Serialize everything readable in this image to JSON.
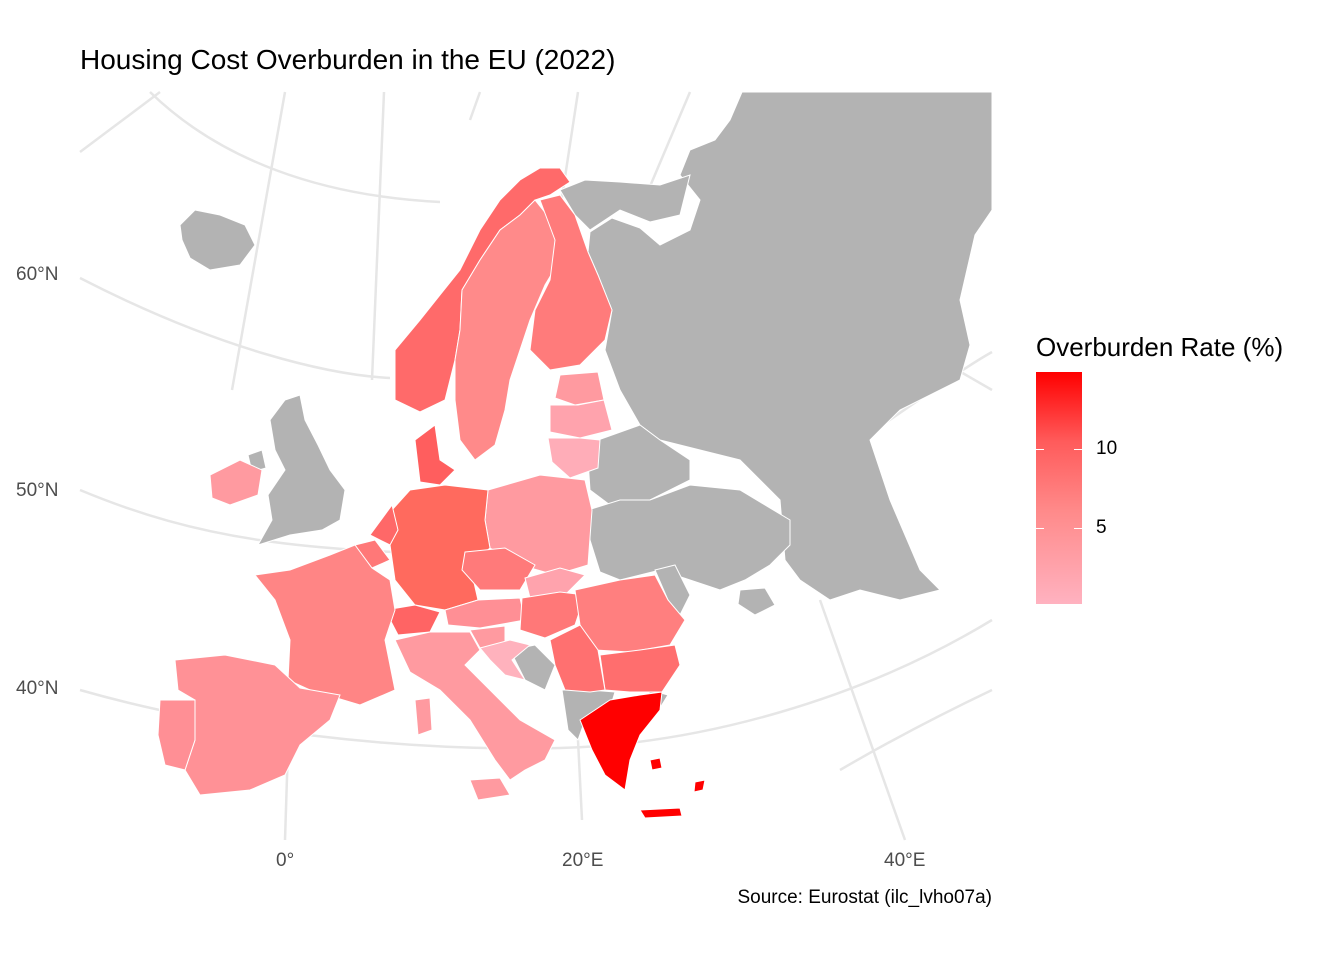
{
  "title": "Housing Cost Overburden in the EU (2022)",
  "caption": "Source: Eurostat (ilc_lvho07a)",
  "axes": {
    "lat_labels": [
      "60°N",
      "50°N",
      "40°N"
    ],
    "lon_labels": [
      "0°",
      "20°E",
      "40°E"
    ]
  },
  "legend": {
    "title": "Overburden Rate (%)",
    "ticks": [
      "10",
      "5"
    ],
    "colors": {
      "high": "#ff0000",
      "low": "#ffb2c0",
      "no_data": "#b3b3b3"
    }
  },
  "chart_data": {
    "type": "choropleth",
    "title": "Housing Cost Overburden in the EU (2022)",
    "value_label": "Overburden Rate (%)",
    "range_approx": [
      1,
      15
    ],
    "regions_approx": [
      {
        "name": "Greece",
        "value": 15
      },
      {
        "name": "Denmark",
        "value": 9
      },
      {
        "name": "Norway",
        "value": 8
      },
      {
        "name": "Germany",
        "value": 8
      },
      {
        "name": "Netherlands",
        "value": 7
      },
      {
        "name": "Switzerland",
        "value": 8
      },
      {
        "name": "Bulgaria",
        "value": 6
      },
      {
        "name": "Finland",
        "value": 5
      },
      {
        "name": "Romania",
        "value": 5
      },
      {
        "name": "Hungary",
        "value": 5
      },
      {
        "name": "Serbia",
        "value": 5
      },
      {
        "name": "Czechia",
        "value": 5
      },
      {
        "name": "France",
        "value": 5
      },
      {
        "name": "Spain",
        "value": 4
      },
      {
        "name": "Portugal",
        "value": 4
      },
      {
        "name": "Belgium",
        "value": 5
      },
      {
        "name": "Sweden",
        "value": 4
      },
      {
        "name": "Poland",
        "value": 4
      },
      {
        "name": "Austria",
        "value": 4
      },
      {
        "name": "Italy",
        "value": 3
      },
      {
        "name": "Ireland",
        "value": 3
      },
      {
        "name": "Estonia",
        "value": 3
      },
      {
        "name": "Latvia",
        "value": 3
      },
      {
        "name": "Lithuania",
        "value": 2
      },
      {
        "name": "Slovakia",
        "value": 2
      },
      {
        "name": "Slovenia",
        "value": 3
      },
      {
        "name": "Croatia",
        "value": 2
      }
    ]
  }
}
